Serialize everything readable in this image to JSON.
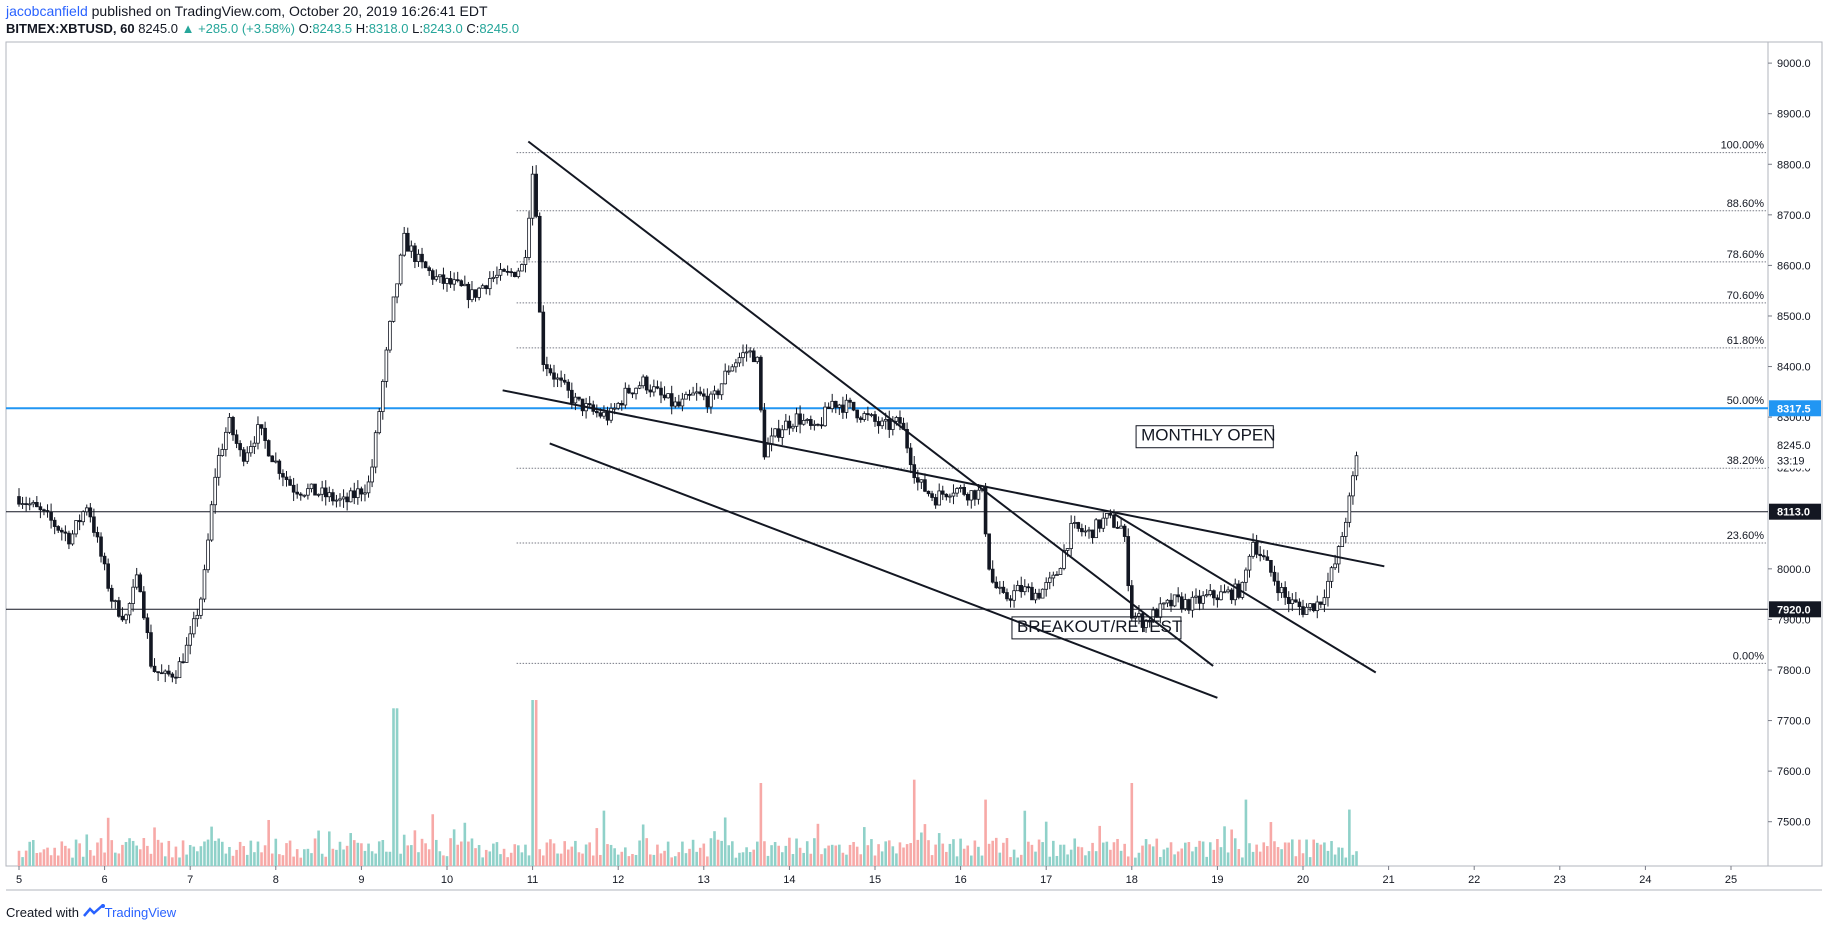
{
  "header": {
    "user": "jacobcanfield",
    "published": "published on TradingView.com, October 20, 2019 16:26:41 EDT"
  },
  "ticker": {
    "symbol": "BITMEX:XBTUSD, 60",
    "last": "8245.0",
    "change": "+285.0 (+3.58%)",
    "o_label": "O:",
    "o": "8243.5",
    "h_label": "H:",
    "h": "8318.0",
    "l_label": "L:",
    "l": "8243.0",
    "c_label": "C:",
    "c": "8245.0"
  },
  "footer": {
    "created": "Created with",
    "brand": "TradingView"
  },
  "colors": {
    "up": "#26a69a",
    "down": "#ef5350",
    "volume_up": "#8fd1c9",
    "volume_down": "#f7a9a7",
    "monthly_open_line": "#2196f3",
    "level_line": "#131722",
    "fib_line": "#787b86"
  },
  "chart_data": {
    "type": "candlestick",
    "interval": "60",
    "ylim": [
      7450,
      9020
    ],
    "y_ticks": [
      "9000.0",
      "8900.0",
      "8800.0",
      "8700.0",
      "8600.0",
      "8500.0",
      "8400.0",
      "8300.0",
      "8200.0",
      "8000.0",
      "7900.0",
      "7800.0",
      "7700.0",
      "7600.0",
      "7500.0"
    ],
    "x_ticks": [
      "5",
      "6",
      "7",
      "8",
      "9",
      "10",
      "11",
      "12",
      "13",
      "14",
      "15",
      "16",
      "17",
      "18",
      "19",
      "20",
      "21",
      "22",
      "23",
      "24",
      "25"
    ],
    "price_tags": [
      {
        "label": "8317.5",
        "value": 8317.5,
        "style": "blue"
      },
      {
        "label": "8245.0",
        "value": 8245.0,
        "style": "plain"
      },
      {
        "label": "33:19",
        "value": 8214,
        "style": "plain"
      },
      {
        "label": "8113.0",
        "value": 8113.0,
        "style": "dark"
      },
      {
        "label": "7920.0",
        "value": 7920.0,
        "style": "dark"
      }
    ],
    "horizontal_levels": [
      {
        "value": 8317.5,
        "color": "blue"
      },
      {
        "value": 8113.0,
        "color": "dark"
      },
      {
        "value": 7920.0,
        "color": "dark"
      }
    ],
    "fib_levels": [
      {
        "label": "100.00%",
        "value": 8823
      },
      {
        "label": "88.60%",
        "value": 8708
      },
      {
        "label": "78.60%",
        "value": 8607
      },
      {
        "label": "70.60%",
        "value": 8526
      },
      {
        "label": "61.80%",
        "value": 8437
      },
      {
        "label": "50.00%",
        "value": 8318
      },
      {
        "label": "38.20%",
        "value": 8199
      },
      {
        "label": "23.60%",
        "value": 8051
      },
      {
        "label": "0.00%",
        "value": 7813
      }
    ],
    "fib_x_range": [
      11,
      21.4
    ],
    "trendlines": [
      {
        "x1": 10.95,
        "y1": 8845,
        "x2": 18.95,
        "y2": 7808
      },
      {
        "x1": 10.65,
        "y1": 8353,
        "x2": 20.95,
        "y2": 8005
      },
      {
        "x1": 11.2,
        "y1": 8248,
        "x2": 19.0,
        "y2": 7745
      },
      {
        "x1": 17.8,
        "y1": 8108,
        "x2": 20.85,
        "y2": 7795
      }
    ],
    "annotations": [
      {
        "text": "MONTHLY OPEN",
        "x": 18.05,
        "y": 8283
      },
      {
        "text": "BREAKOUT/RETEST",
        "x": 16.6,
        "y": 7905
      }
    ],
    "price_path": [
      [
        5.0,
        8143
      ],
      [
        5.3,
        8105
      ],
      [
        5.6,
        8060
      ],
      [
        5.8,
        8130
      ],
      [
        5.95,
        8030
      ],
      [
        6.1,
        7930
      ],
      [
        6.25,
        7905
      ],
      [
        6.4,
        7990
      ],
      [
        6.55,
        7805
      ],
      [
        6.7,
        7785
      ],
      [
        6.85,
        7800
      ],
      [
        7.0,
        7860
      ],
      [
        7.15,
        7960
      ],
      [
        7.3,
        8200
      ],
      [
        7.45,
        8290
      ],
      [
        7.6,
        8220
      ],
      [
        7.8,
        8275
      ],
      [
        8.0,
        8210
      ],
      [
        8.2,
        8160
      ],
      [
        8.5,
        8150
      ],
      [
        8.8,
        8130
      ],
      [
        9.1,
        8170
      ],
      [
        9.35,
        8500
      ],
      [
        9.5,
        8650
      ],
      [
        9.7,
        8600
      ],
      [
        9.9,
        8570
      ],
      [
        10.1,
        8560
      ],
      [
        10.3,
        8540
      ],
      [
        10.5,
        8575
      ],
      [
        10.7,
        8580
      ],
      [
        10.9,
        8600
      ],
      [
        11.02,
        8820
      ],
      [
        11.1,
        8420
      ],
      [
        11.3,
        8370
      ],
      [
        11.5,
        8330
      ],
      [
        11.7,
        8310
      ],
      [
        11.9,
        8300
      ],
      [
        12.1,
        8350
      ],
      [
        12.3,
        8370
      ],
      [
        12.5,
        8340
      ],
      [
        12.7,
        8320
      ],
      [
        12.9,
        8345
      ],
      [
        13.1,
        8330
      ],
      [
        13.3,
        8400
      ],
      [
        13.5,
        8430
      ],
      [
        13.62,
        8420
      ],
      [
        13.7,
        8230
      ],
      [
        13.9,
        8280
      ],
      [
        14.1,
        8300
      ],
      [
        14.3,
        8270
      ],
      [
        14.5,
        8330
      ],
      [
        14.7,
        8320
      ],
      [
        14.9,
        8300
      ],
      [
        15.1,
        8280
      ],
      [
        15.3,
        8290
      ],
      [
        15.5,
        8170
      ],
      [
        15.7,
        8140
      ],
      [
        15.9,
        8160
      ],
      [
        16.1,
        8150
      ],
      [
        16.25,
        8150
      ],
      [
        16.35,
        7980
      ],
      [
        16.5,
        7940
      ],
      [
        16.7,
        7960
      ],
      [
        16.9,
        7950
      ],
      [
        17.1,
        7980
      ],
      [
        17.3,
        8080
      ],
      [
        17.5,
        8070
      ],
      [
        17.7,
        8100
      ],
      [
        17.9,
        8080
      ],
      [
        18.0,
        7910
      ],
      [
        18.15,
        7895
      ],
      [
        18.3,
        7915
      ],
      [
        18.5,
        7935
      ],
      [
        18.7,
        7930
      ],
      [
        18.9,
        7945
      ],
      [
        19.1,
        7950
      ],
      [
        19.3,
        7960
      ],
      [
        19.4,
        8060
      ],
      [
        19.6,
        8000
      ],
      [
        19.8,
        7940
      ],
      [
        20.0,
        7920
      ],
      [
        20.2,
        7935
      ],
      [
        20.4,
        8020
      ],
      [
        20.55,
        8140
      ],
      [
        20.65,
        8245
      ]
    ],
    "volume_ylim": [
      0,
      1
    ],
    "volume_spikes": [
      {
        "x": 9.4,
        "value": 0.95,
        "dir": "up"
      },
      {
        "x": 11.02,
        "value": 1.0,
        "dir": "down"
      },
      {
        "x": 13.65,
        "value": 0.5,
        "dir": "down"
      },
      {
        "x": 15.45,
        "value": 0.52,
        "dir": "down"
      },
      {
        "x": 16.3,
        "value": 0.4,
        "dir": "down"
      },
      {
        "x": 18.0,
        "value": 0.5,
        "dir": "down"
      },
      {
        "x": 19.35,
        "value": 0.4,
        "dir": "up"
      },
      {
        "x": 20.55,
        "value": 0.34,
        "dir": "up"
      }
    ]
  }
}
